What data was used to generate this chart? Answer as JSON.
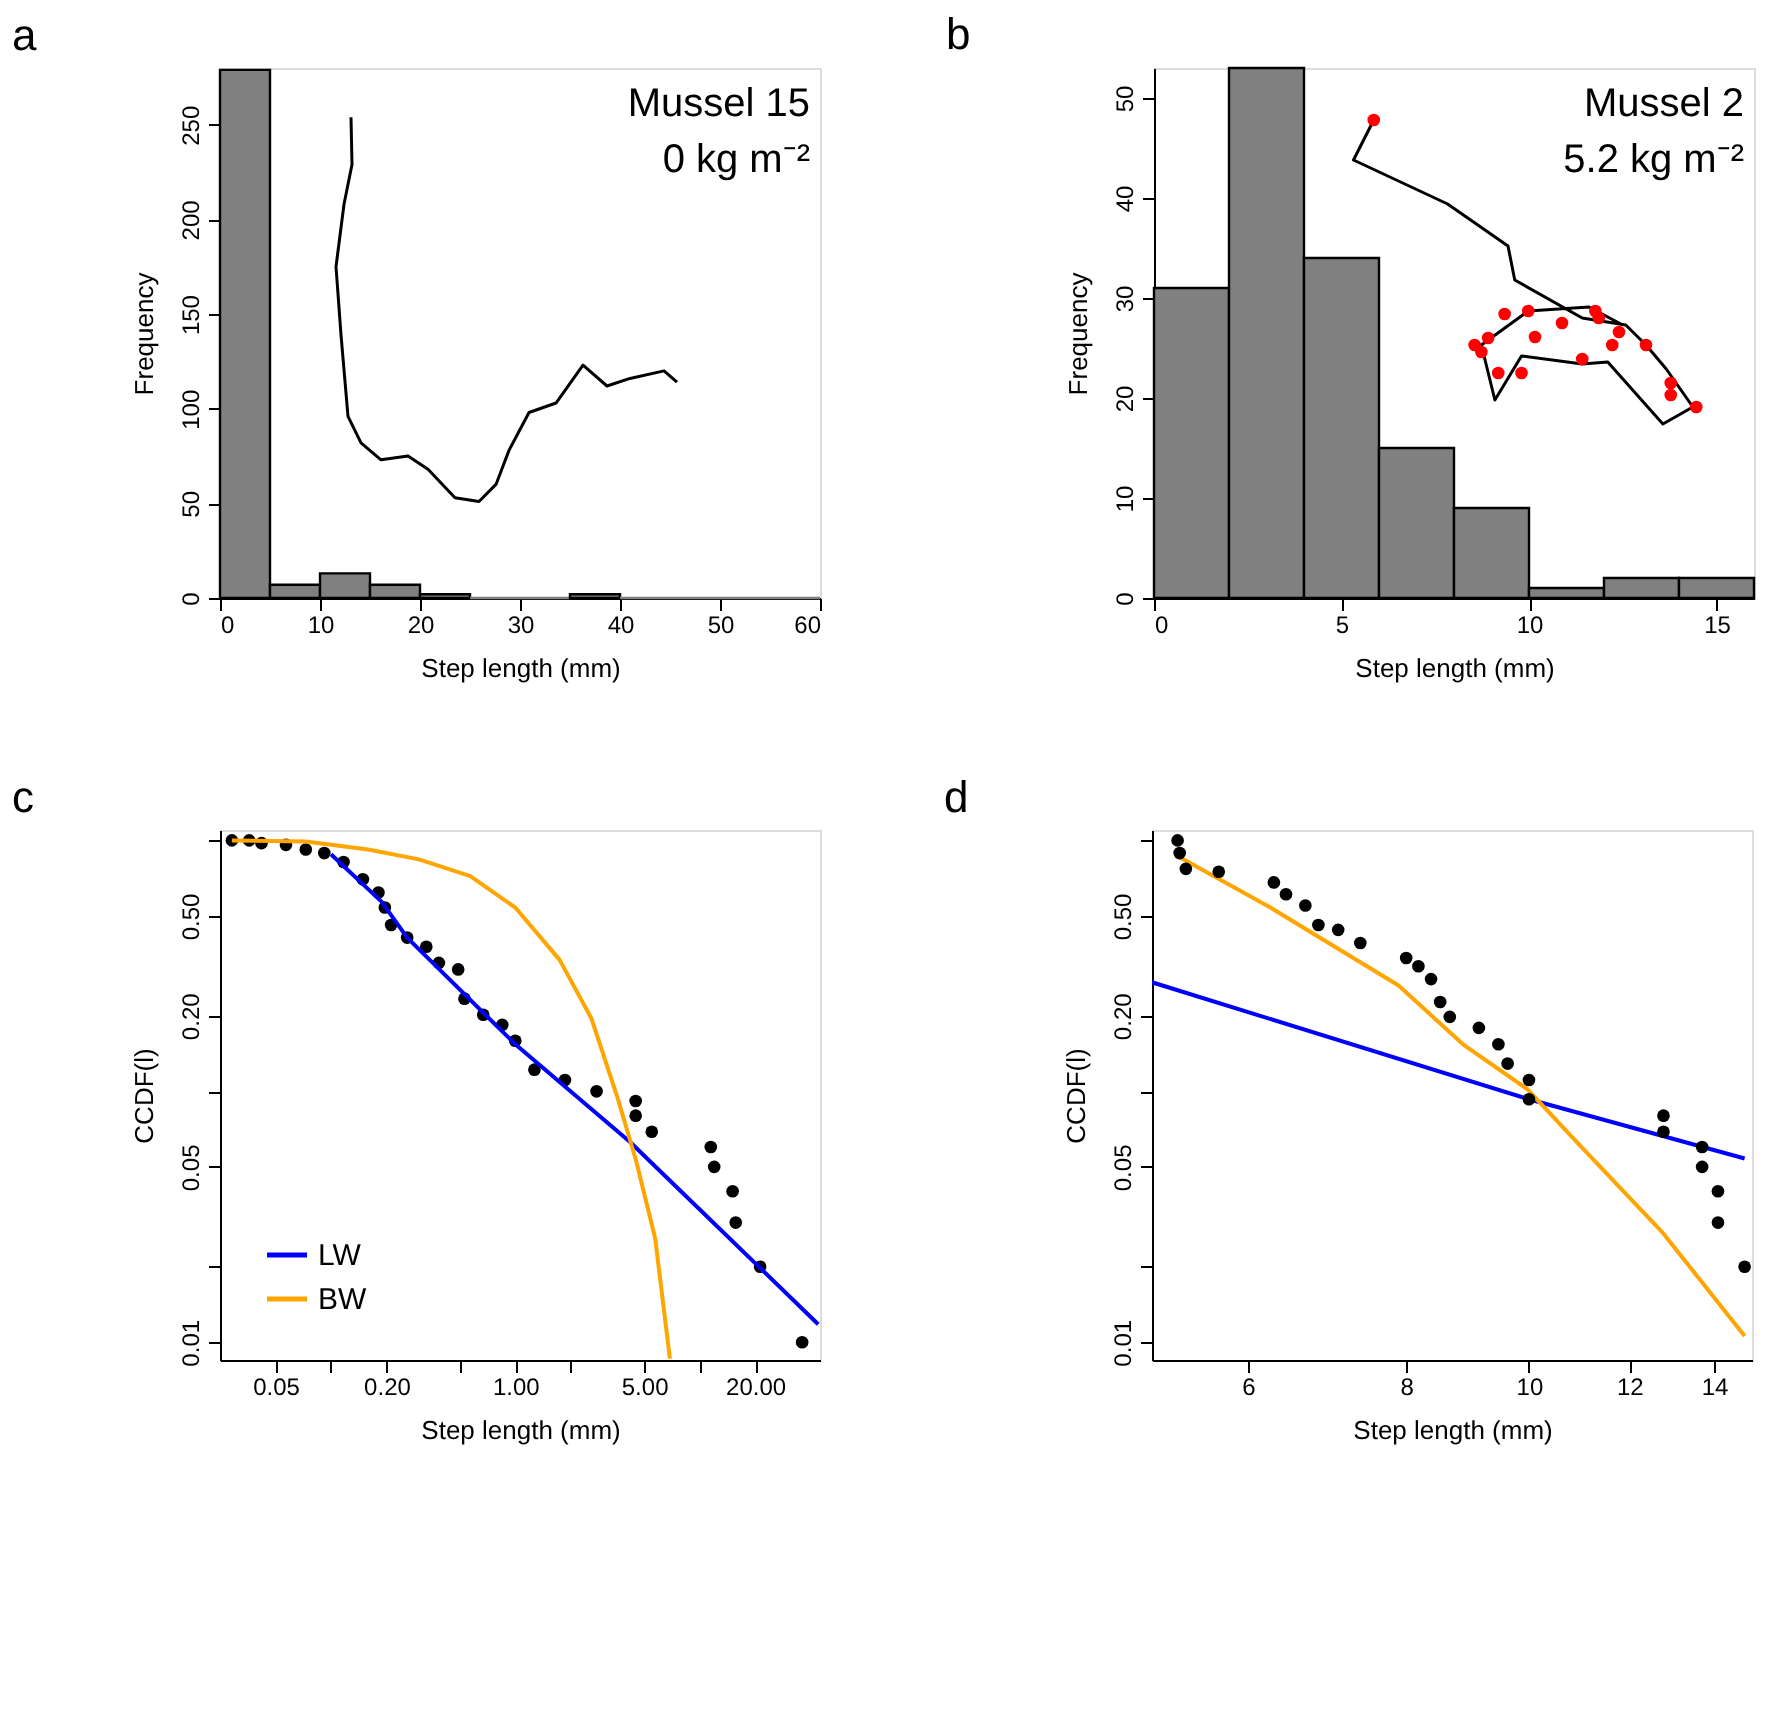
{
  "chart_data": [
    {
      "type": "histogram",
      "title": "a",
      "xlabel": "Step length (mm)",
      "ylabel": "Frequency",
      "annotations": [
        "Mussel 15",
        "0 kg m⁻²"
      ],
      "bins": [
        0,
        5,
        10,
        15,
        20,
        25,
        30,
        35,
        40,
        45,
        50,
        55,
        60
      ],
      "values": [
        279,
        7,
        13,
        7,
        2,
        0,
        0,
        2,
        0,
        0,
        0,
        0
      ],
      "color": "#808080",
      "series": [
        {
          "type": "line",
          "color": "#000000",
          "x": [
            13.1,
            13.2,
            12.4,
            11.6,
            12.1,
            12.8,
            14.1,
            16.1,
            18.8,
            20.8,
            23.5,
            25.9,
            27.6,
            28.9,
            30.9,
            33.6,
            36.3,
            38.7,
            41.0,
            44.4,
            45.7
          ],
          "values": [
            254,
            229,
            208,
            175,
            139,
            96,
            82,
            73,
            75,
            68,
            53,
            51,
            60,
            78,
            98,
            103,
            123,
            112,
            116,
            120,
            114
          ]
        }
      ],
      "xlim": [
        0,
        60
      ],
      "xticks": [
        0,
        10,
        20,
        30,
        40,
        50,
        60
      ],
      "ylim": [
        0,
        280
      ],
      "yticks": [
        0,
        50,
        100,
        150,
        200,
        250
      ],
      "grid": false
    },
    {
      "type": "histogram",
      "title": "b",
      "xlabel": "Step length (mm)",
      "ylabel": "Frequency",
      "annotations": [
        "Mussel 2",
        "5.2 kg m⁻²"
      ],
      "bins": [
        0,
        2,
        4,
        6,
        8,
        10,
        12,
        14,
        16
      ],
      "values": [
        31,
        53,
        34,
        15,
        9,
        1,
        2,
        2
      ],
      "color": "#808080",
      "series": [
        {
          "type": "line",
          "color": "#000000",
          "x": [
            5.86,
            5.32,
            7.83,
            9.44,
            9.62,
            11.42,
            12.58,
            13.12,
            13.66,
            14.37,
            13.57,
            12.1,
            11.42,
            9.8,
            9.09,
            8.73,
            9.98,
            11.6,
            12.5
          ],
          "values": [
            47.8,
            43.8,
            39.4,
            35.2,
            31.8,
            28.0,
            27.3,
            25.3,
            22.9,
            19.1,
            17.4,
            23.6,
            23.4,
            24.2,
            19.8,
            25.3,
            28.7,
            29.1,
            27.3
          ]
        },
        {
          "type": "scatter",
          "marker": "circle",
          "color": "#ff0000",
          "x": [
            5.86,
            8.55,
            8.73,
            8.91,
            9.35,
            9.98,
            10.88,
            11.77,
            11.86,
            12.22,
            13.12,
            13.78,
            13.78,
            14.46,
            9.8,
            11.42,
            9.18,
            12.4,
            10.16
          ],
          "values": [
            47.8,
            25.3,
            24.6,
            26.0,
            28.4,
            28.7,
            27.5,
            28.7,
            28.0,
            25.3,
            25.3,
            21.5,
            20.3,
            19.1,
            22.5,
            23.9,
            22.5,
            26.6,
            26.1
          ]
        }
      ],
      "xlim": [
        0,
        16
      ],
      "xticks": [
        0,
        5,
        10,
        15
      ],
      "ylim": [
        0,
        53
      ],
      "yticks": [
        0,
        10,
        20,
        30,
        40,
        50
      ],
      "grid": false
    },
    {
      "type": "scatter",
      "title": "c",
      "xlabel": "Step length (mm)",
      "ylabel": "CCDF(l)",
      "log": "xy",
      "legend": "bottom left",
      "grid": false,
      "series": [
        {
          "type": "scatter",
          "marker": "circle",
          "color": "#000000",
          "x": [
            0.029,
            0.036,
            0.042,
            0.057,
            0.073,
            0.092,
            0.117,
            0.149,
            0.181,
            0.196,
            0.212,
            0.259,
            0.329,
            0.385,
            0.49,
            0.53,
            0.67,
            0.85,
            1.0,
            1.27,
            1.86,
            2.76,
            4.5,
            4.5,
            5.5,
            11.5,
            12.0,
            15.1,
            15.7,
            21.3,
            36
          ],
          "values": [
            1.0,
            1.0,
            0.975,
            0.96,
            0.92,
            0.89,
            0.82,
            0.7,
            0.62,
            0.54,
            0.46,
            0.41,
            0.377,
            0.325,
            0.306,
            0.234,
            0.202,
            0.184,
            0.159,
            0.122,
            0.111,
            0.1,
            0.0915,
            0.08,
            0.069,
            0.06,
            0.05,
            0.04,
            0.03,
            0.02,
            0.01
          ]
        },
        {
          "name": "LW",
          "type": "line",
          "color": "#0000ff",
          "x": [
            0.1,
            0.188,
            0.259,
            1.0,
            4.18,
            44
          ],
          "values": [
            0.88,
            0.57,
            0.41,
            0.154,
            0.063,
            0.0118
          ]
        },
        {
          "name": "BW",
          "type": "line",
          "color": "#ffa500",
          "x": [
            0.029,
            0.073,
            0.159,
            0.3,
            0.57,
            1.0,
            1.74,
            2.59,
            3.56,
            4.52,
            5.74,
            6.9
          ],
          "values": [
            1.0,
            0.99,
            0.92,
            0.84,
            0.72,
            0.54,
            0.334,
            0.195,
            0.096,
            0.053,
            0.026,
            0.0086
          ]
        }
      ],
      "xlim": [
        0.025,
        45
      ],
      "xticks": [
        {
          "value": 0.05,
          "label": "0.05"
        },
        {
          "value": 0.1,
          "label": null
        },
        {
          "value": 0.2,
          "label": "0.20"
        },
        {
          "value": 0.5,
          "label": null
        },
        {
          "value": 1,
          "label": "1.00"
        },
        {
          "value": 2,
          "label": null
        },
        {
          "value": 5,
          "label": "5.00"
        },
        {
          "value": 10,
          "label": null
        },
        {
          "value": 20,
          "label": "20.00"
        }
      ],
      "ylim": [
        0.0085,
        1.1
      ],
      "yticks": [
        {
          "value": 0.01,
          "label": "0.01"
        },
        {
          "value": 0.02,
          "label": null
        },
        {
          "value": 0.05,
          "label": "0.05"
        },
        {
          "value": 0.1,
          "label": null
        },
        {
          "value": 0.2,
          "label": "0.20"
        },
        {
          "value": 0.5,
          "label": "0.50"
        },
        {
          "value": 1,
          "label": null
        }
      ]
    },
    {
      "type": "scatter",
      "title": "d",
      "xlabel": "Step length (mm)",
      "ylabel": "CCDF(l)",
      "log": "xy",
      "grid": false,
      "series": [
        {
          "type": "line",
          "color": "#0000ff",
          "x": [
            5.04,
            10.0,
            14.8
          ],
          "values": [
            0.272,
            0.093,
            0.054
          ]
        },
        {
          "type": "line",
          "color": "#ffa500",
          "x": [
            5.27,
            6.25,
            7.89,
            8.87,
            9.97,
            10.9,
            12.74,
            14.8
          ],
          "values": [
            0.87,
            0.54,
            0.264,
            0.154,
            0.102,
            0.063,
            0.0275,
            0.0106
          ]
        },
        {
          "type": "scatter",
          "marker": "circle",
          "color": "#000000",
          "x": [
            5.28,
            5.3,
            5.36,
            5.69,
            6.29,
            6.43,
            6.66,
            6.82,
            7.07,
            7.36,
            8.0,
            8.18,
            8.37,
            8.51,
            8.66,
            9.13,
            9.46,
            9.62,
            10.0,
            10.0,
            12.77,
            12.77,
            13.7,
            13.7,
            14.1,
            14.1,
            14.8
          ],
          "values": [
            1.0,
            0.89,
            0.77,
            0.75,
            0.68,
            0.61,
            0.55,
            0.46,
            0.44,
            0.39,
            0.34,
            0.315,
            0.28,
            0.227,
            0.198,
            0.179,
            0.154,
            0.129,
            0.111,
            0.093,
            0.08,
            0.069,
            0.06,
            0.05,
            0.04,
            0.03,
            0.02
          ]
        }
      ],
      "xlim": [
        5.04,
        15
      ],
      "xticks": [
        6,
        8,
        10,
        12,
        14
      ],
      "ylim": [
        0.0085,
        1.1
      ],
      "yticks": [
        {
          "value": 0.01,
          "label": "0.01"
        },
        {
          "value": 0.02,
          "label": null
        },
        {
          "value": 0.05,
          "label": "0.05"
        },
        {
          "value": 0.1,
          "label": null
        },
        {
          "value": 0.2,
          "label": "0.20"
        },
        {
          "value": 0.5,
          "label": "0.50"
        },
        {
          "value": 1,
          "label": null
        }
      ]
    }
  ]
}
